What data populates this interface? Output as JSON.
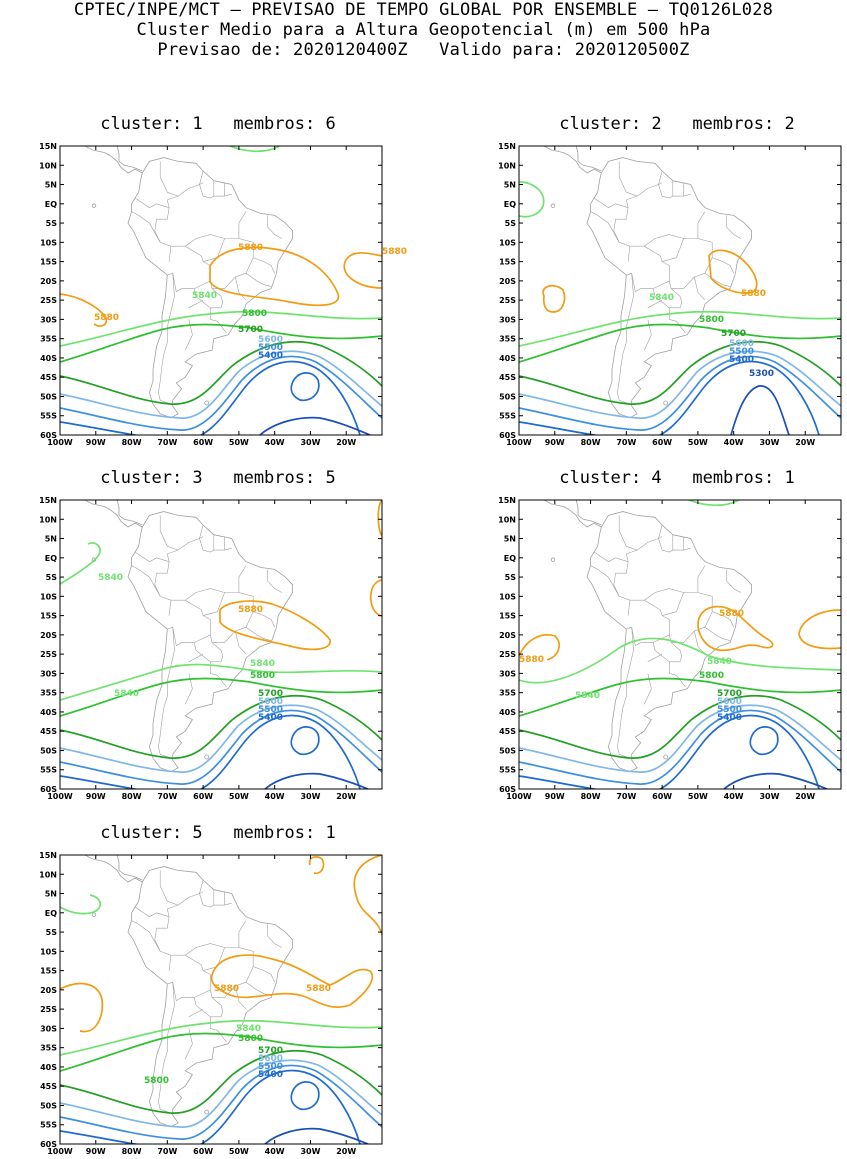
{
  "header": {
    "line1": "CPTEC/INPE/MCT — PREVISAO DE TEMPO GLOBAL POR ENSEMBLE — TQ0126L028",
    "line2": "Cluster Medio para a Altura Geopotencial (m) em 500 hPa",
    "line3": "Previsao de: 2020120400Z   Valido para: 2020120500Z"
  },
  "map_axes": {
    "lat_ticks": [
      "15N",
      "10N",
      "5N",
      "EQ",
      "5S",
      "10S",
      "15S",
      "20S",
      "25S",
      "30S",
      "35S",
      "40S",
      "45S",
      "50S",
      "55S",
      "60S"
    ],
    "lon_ticks": [
      "100W",
      "90W",
      "80W",
      "70W",
      "60W",
      "50W",
      "40W",
      "30W",
      "20W"
    ]
  },
  "colors": {
    "c5880": "#f39c12",
    "c5840": "#6fe36f",
    "c5800": "#2fc02f",
    "c5700": "#22a022",
    "c5600": "#7fb7e8",
    "c5500": "#3d8fe0",
    "c5400": "#1e6ad0",
    "c5300": "#1a4fb8",
    "coast": "#a0a0a0"
  },
  "panels": [
    {
      "title": "cluster: 1   membros: 6",
      "labels": [
        {
          "text": "5880",
          "color": "#f39c12"
        },
        {
          "text": "5880",
          "color": "#f39c12"
        },
        {
          "text": "5880",
          "color": "#f39c12"
        },
        {
          "text": "5840",
          "color": "#6fe36f"
        },
        {
          "text": "5800",
          "color": "#2fc02f"
        },
        {
          "text": "5700",
          "color": "#22a022"
        },
        {
          "text": "5600",
          "color": "#7fb7e8"
        },
        {
          "text": "5500",
          "color": "#3d8fe0"
        },
        {
          "text": "5400",
          "color": "#1e6ad0"
        }
      ]
    },
    {
      "title": "cluster: 2   membros: 2",
      "labels": [
        {
          "text": "5880",
          "color": "#f39c12"
        },
        {
          "text": "5840",
          "color": "#6fe36f"
        },
        {
          "text": "5800",
          "color": "#2fc02f"
        },
        {
          "text": "5700",
          "color": "#22a022"
        },
        {
          "text": "5600",
          "color": "#7fb7e8"
        },
        {
          "text": "5500",
          "color": "#3d8fe0"
        },
        {
          "text": "5400",
          "color": "#1e6ad0"
        },
        {
          "text": "5300",
          "color": "#1a4fb8"
        }
      ]
    },
    {
      "title": "cluster: 3   membros: 5",
      "labels": [
        {
          "text": "5880",
          "color": "#f39c12"
        },
        {
          "text": "5840",
          "color": "#6fe36f"
        },
        {
          "text": "5840",
          "color": "#6fe36f"
        },
        {
          "text": "5840",
          "color": "#6fe36f"
        },
        {
          "text": "5800",
          "color": "#2fc02f"
        },
        {
          "text": "5700",
          "color": "#22a022"
        },
        {
          "text": "5600",
          "color": "#7fb7e8"
        },
        {
          "text": "5500",
          "color": "#3d8fe0"
        },
        {
          "text": "5400",
          "color": "#1e6ad0"
        }
      ]
    },
    {
      "title": "cluster: 4   membros: 1",
      "labels": [
        {
          "text": "5880",
          "color": "#f39c12"
        },
        {
          "text": "5880",
          "color": "#f39c12"
        },
        {
          "text": "5840",
          "color": "#6fe36f"
        },
        {
          "text": "5840",
          "color": "#6fe36f"
        },
        {
          "text": "5800",
          "color": "#2fc02f"
        },
        {
          "text": "5700",
          "color": "#22a022"
        },
        {
          "text": "5600",
          "color": "#7fb7e8"
        },
        {
          "text": "5500",
          "color": "#3d8fe0"
        },
        {
          "text": "5400",
          "color": "#1e6ad0"
        }
      ]
    },
    {
      "title": "cluster: 5   membros: 1",
      "labels": [
        {
          "text": "5880",
          "color": "#f39c12"
        },
        {
          "text": "5880",
          "color": "#f39c12"
        },
        {
          "text": "5840",
          "color": "#6fe36f"
        },
        {
          "text": "5800",
          "color": "#2fc02f"
        },
        {
          "text": "5800",
          "color": "#2fc02f"
        },
        {
          "text": "5700",
          "color": "#22a022"
        },
        {
          "text": "5600",
          "color": "#7fb7e8"
        },
        {
          "text": "5500",
          "color": "#3d8fe0"
        },
        {
          "text": "5400",
          "color": "#1e6ad0"
        }
      ]
    }
  ]
}
